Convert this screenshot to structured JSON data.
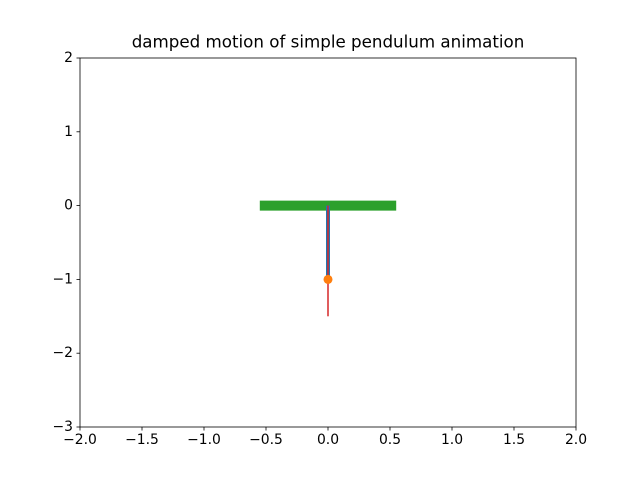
{
  "chart_data": {
    "type": "line",
    "title": "damped motion of simple pendulum animation",
    "series": [
      {
        "color": "#2ca02c",
        "linewidth": 10,
        "x": [
          -0.55,
          0.55
        ],
        "values": [
          0,
          0
        ]
      },
      {
        "color": "#1f77b4",
        "linewidth": 4,
        "x": [
          0,
          0
        ],
        "values": [
          0,
          -1
        ]
      },
      {
        "color": "#d62728",
        "linewidth": 1.5,
        "x": [
          0,
          0
        ],
        "values": [
          0,
          -1.5
        ]
      },
      {
        "color": "#ff7f0e",
        "marker": "o",
        "x": [
          0
        ],
        "values": [
          -1
        ]
      }
    ],
    "xlim": [
      -2,
      2
    ],
    "ylim": [
      -3,
      2
    ],
    "xticks": [
      {
        "value": -2,
        "label": "−2.0"
      },
      {
        "value": -1.5,
        "label": "−1.5"
      },
      {
        "value": -1,
        "label": "−1.0"
      },
      {
        "value": -0.5,
        "label": "−0.5"
      },
      {
        "value": 0,
        "label": "0.0"
      },
      {
        "value": 0.5,
        "label": "0.5"
      },
      {
        "value": 1,
        "label": "1.0"
      },
      {
        "value": 1.5,
        "label": "1.5"
      },
      {
        "value": 2,
        "label": "2.0"
      }
    ],
    "yticks": [
      {
        "value": -3,
        "label": "−3"
      },
      {
        "value": -2,
        "label": "−2"
      },
      {
        "value": -1,
        "label": "−1"
      },
      0,
      1,
      2
    ],
    "grid": false
  }
}
